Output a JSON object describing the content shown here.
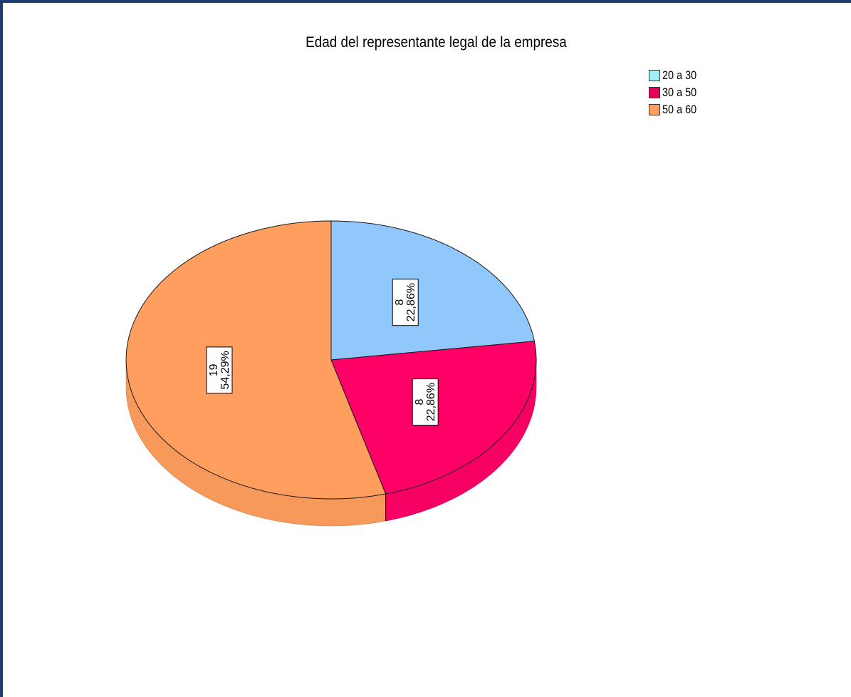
{
  "chart_data": {
    "type": "pie",
    "title": "Edad del representante legal de la empresa",
    "slices": [
      {
        "name": "20 a 30",
        "value": 8,
        "percent": "22,86%",
        "slice_color": "#90c8fc",
        "legend_color": "#a0f0fa"
      },
      {
        "name": "30 a 50",
        "value": 8,
        "percent": "22,86%",
        "slice_color": "#ff0066",
        "legend_color": "#e6005c"
      },
      {
        "name": "50 a 60",
        "value": 19,
        "percent": "54,29%",
        "slice_color": "#ff9e5e",
        "legend_color": "#ff9e5e"
      }
    ],
    "legend_position": "top-right",
    "style": "3d-pie"
  }
}
